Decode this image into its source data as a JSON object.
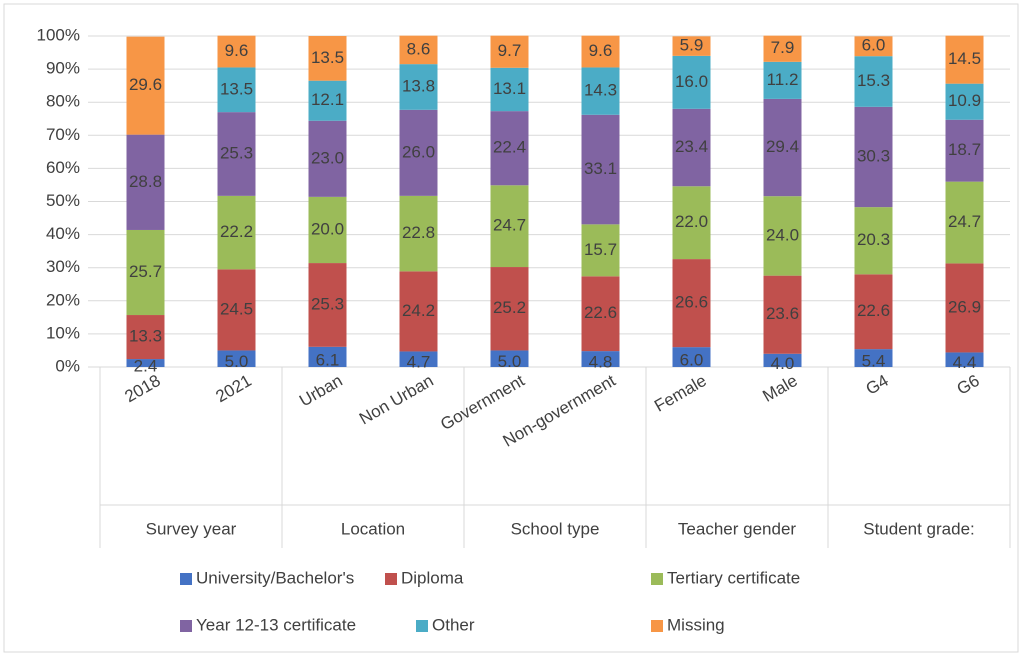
{
  "chart_data": {
    "type": "stacked_bar",
    "categories": [
      "2018",
      "2021",
      "Urban",
      "Non Urban",
      "Government",
      "Non-government",
      "Female",
      "Male",
      "G4",
      "G6"
    ],
    "groups": [
      "Survey year",
      "Location",
      "School type",
      "Teacher gender",
      "Student grade:"
    ],
    "series": [
      {
        "name": "University/Bachelor's",
        "color": "#4472c4",
        "values": [
          2.4,
          5,
          6.1,
          4.7,
          5,
          4.8,
          6,
          4,
          5.4,
          4.4
        ],
        "value_labels": [
          "2.4",
          "5.0",
          "6.1",
          "4.7",
          "5.0",
          "4.8",
          "6.0",
          "4.0",
          "5.4",
          "4.4"
        ]
      },
      {
        "name": "Diploma",
        "color": "#c0504d",
        "values": [
          13.3,
          24.5,
          25.3,
          24.2,
          25.2,
          22.6,
          26.6,
          23.6,
          22.6,
          26.9
        ],
        "value_labels": [
          "13.3",
          "24.5",
          "25.3",
          "24.2",
          "25.2",
          "22.6",
          "26.6",
          "23.6",
          "22.6",
          "26.9"
        ]
      },
      {
        "name": "Tertiary certificate",
        "color": "#9bbb59",
        "values": [
          25.7,
          22.2,
          20,
          22.8,
          24.7,
          15.7,
          22,
          24,
          20.3,
          24.7
        ],
        "value_labels": [
          "25.7",
          "22.2",
          "20.0",
          "22.8",
          "24.7",
          "15.7",
          "22.0",
          "24.0",
          "20.3",
          "24.7"
        ]
      },
      {
        "name": "Year 12-13 certificate",
        "color": "#8064a2",
        "values": [
          28.8,
          25.3,
          23,
          26,
          22.4,
          33.1,
          23.4,
          29.4,
          30.3,
          18.7
        ],
        "value_labels": [
          "28.8",
          "25.3",
          "23.0",
          "26.0",
          "22.4",
          "33.1",
          "23.4",
          "29.4",
          "30.3",
          "18.7"
        ]
      },
      {
        "name": "Other",
        "color": "#4bacc6",
        "values": [
          null,
          13.5,
          12.1,
          13.8,
          13.1,
          14.3,
          16,
          11.2,
          15.3,
          10.9
        ],
        "value_labels": [
          null,
          "13.5",
          "12.1",
          "13.8",
          "13.1",
          "14.3",
          "16.0",
          "11.2",
          "15.3",
          "10.9"
        ]
      },
      {
        "name": "Missing",
        "color": "#f79646",
        "values": [
          29.6,
          9.6,
          13.5,
          8.6,
          9.7,
          9.6,
          5.9,
          7.9,
          6,
          14.5
        ],
        "value_labels": [
          "29.6",
          "9.6",
          "13.5",
          "8.6",
          "9.7",
          "9.6",
          "5.9",
          "7.9",
          "6.0",
          "14.5"
        ]
      }
    ],
    "ylim": [
      0,
      100
    ],
    "yticks": [
      {
        "value": 0,
        "label": "0%"
      },
      {
        "value": 10,
        "label": "10%"
      },
      {
        "value": 20,
        "label": "20%"
      },
      {
        "value": 30,
        "label": "30%"
      },
      {
        "value": 40,
        "label": "40%"
      },
      {
        "value": 50,
        "label": "50%"
      },
      {
        "value": 60,
        "label": "60%"
      },
      {
        "value": 70,
        "label": "70%"
      },
      {
        "value": 80,
        "label": "80%"
      },
      {
        "value": 90,
        "label": "90%"
      },
      {
        "value": 100,
        "label": "100%"
      }
    ],
    "grid": true
  }
}
